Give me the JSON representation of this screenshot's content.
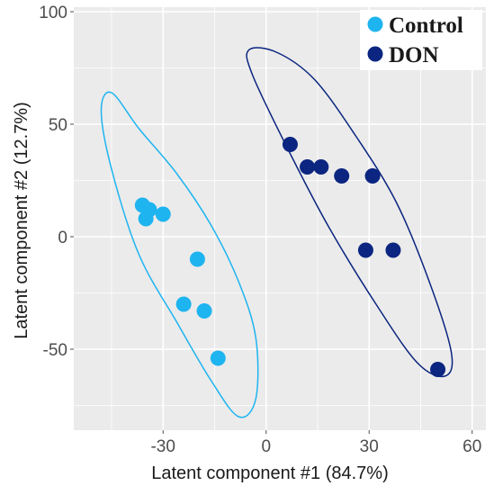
{
  "chart_data": {
    "type": "scatter",
    "title": "",
    "xlabel": "Latent component #1 (84.7%)",
    "ylabel": "Latent component #2 (12.7%)",
    "xlim": [
      -56,
      64
    ],
    "ylim": [
      -86,
      102
    ],
    "x_ticks": [
      -30,
      0,
      30,
      60
    ],
    "y_ticks": [
      100,
      50,
      0,
      -50
    ],
    "grid": true,
    "legend_position": "top-right",
    "series": [
      {
        "name": "Control",
        "color": "#1eb4f0",
        "points": [
          {
            "x": -36,
            "y": 14
          },
          {
            "x": -34,
            "y": 12
          },
          {
            "x": -35,
            "y": 8
          },
          {
            "x": -30,
            "y": 10
          },
          {
            "x": -20,
            "y": -10
          },
          {
            "x": -24,
            "y": -30
          },
          {
            "x": -18,
            "y": -33
          },
          {
            "x": -14,
            "y": -54
          }
        ],
        "ellipse": [
          {
            "x": -45,
            "y": 64
          },
          {
            "x": -37,
            "y": 48
          },
          {
            "x": -26,
            "y": 28
          },
          {
            "x": -16,
            "y": 5
          },
          {
            "x": -8,
            "y": -20
          },
          {
            "x": -3,
            "y": -45
          },
          {
            "x": -3,
            "y": -72
          },
          {
            "x": -8,
            "y": -80
          },
          {
            "x": -16,
            "y": -64
          },
          {
            "x": -26,
            "y": -38
          },
          {
            "x": -37,
            "y": -8
          },
          {
            "x": -45,
            "y": 30
          },
          {
            "x": -48,
            "y": 56
          }
        ]
      },
      {
        "name": "DON",
        "color": "#0b2580",
        "points": [
          {
            "x": 7,
            "y": 41
          },
          {
            "x": 12,
            "y": 31
          },
          {
            "x": 16,
            "y": 31
          },
          {
            "x": 22,
            "y": 27
          },
          {
            "x": 31,
            "y": 27
          },
          {
            "x": 29,
            "y": -6
          },
          {
            "x": 37,
            "y": -6
          },
          {
            "x": 50,
            "y": -59
          }
        ]
      }
    ]
  }
}
